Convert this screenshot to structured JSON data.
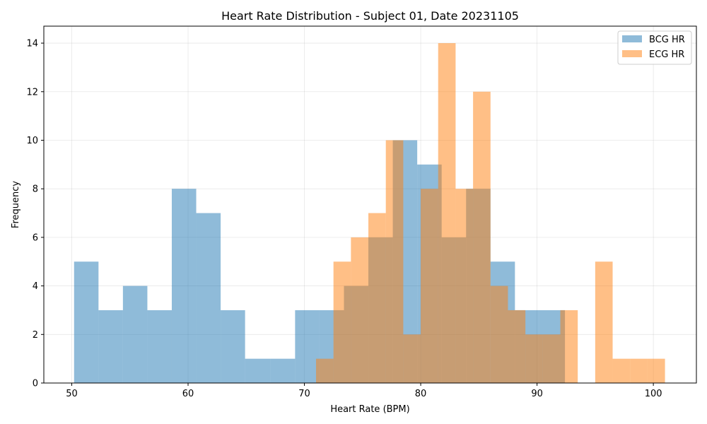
{
  "chart_data": {
    "type": "bar",
    "title": "Heart Rate Distribution - Subject 01, Date 20231105",
    "xlabel": "Heart Rate (BPM)",
    "ylabel": "Frequency",
    "xlim": [
      47.6,
      103.7
    ],
    "ylim": [
      0,
      14.7
    ],
    "xticks": [
      50,
      60,
      70,
      80,
      90,
      100
    ],
    "yticks": [
      0,
      2,
      4,
      6,
      8,
      10,
      12,
      14
    ],
    "grid": true,
    "legend_position": "top-right",
    "series": [
      {
        "name": "BCG HR",
        "color": "#1f77b4",
        "opacity": 0.5,
        "bins": [
          {
            "x0": 50.2,
            "x1": 52.3,
            "count": 5
          },
          {
            "x0": 52.3,
            "x1": 54.4,
            "count": 3
          },
          {
            "x0": 54.4,
            "x1": 56.5,
            "count": 4
          },
          {
            "x0": 56.5,
            "x1": 58.6,
            "count": 3
          },
          {
            "x0": 58.6,
            "x1": 60.7,
            "count": 8
          },
          {
            "x0": 60.7,
            "x1": 62.8,
            "count": 7
          },
          {
            "x0": 62.8,
            "x1": 64.9,
            "count": 3
          },
          {
            "x0": 64.9,
            "x1": 67.1,
            "count": 1
          },
          {
            "x0": 67.1,
            "x1": 69.2,
            "count": 1
          },
          {
            "x0": 69.2,
            "x1": 71.3,
            "count": 3
          },
          {
            "x0": 71.3,
            "x1": 73.4,
            "count": 3
          },
          {
            "x0": 73.4,
            "x1": 75.5,
            "count": 4
          },
          {
            "x0": 75.5,
            "x1": 77.6,
            "count": 6
          },
          {
            "x0": 77.6,
            "x1": 79.7,
            "count": 10
          },
          {
            "x0": 79.7,
            "x1": 81.8,
            "count": 9
          },
          {
            "x0": 81.8,
            "x1": 83.9,
            "count": 6
          },
          {
            "x0": 83.9,
            "x1": 86.0,
            "count": 8
          },
          {
            "x0": 86.0,
            "x1": 88.1,
            "count": 5
          },
          {
            "x0": 88.1,
            "x1": 90.2,
            "count": 3
          },
          {
            "x0": 90.2,
            "x1": 92.4,
            "count": 3
          }
        ]
      },
      {
        "name": "ECG HR",
        "color": "#ff7f0e",
        "opacity": 0.5,
        "bins": [
          {
            "x0": 71.0,
            "x1": 72.5,
            "count": 1
          },
          {
            "x0": 72.5,
            "x1": 74.0,
            "count": 5
          },
          {
            "x0": 74.0,
            "x1": 75.5,
            "count": 6
          },
          {
            "x0": 75.5,
            "x1": 77.0,
            "count": 7
          },
          {
            "x0": 77.0,
            "x1": 78.5,
            "count": 10
          },
          {
            "x0": 78.5,
            "x1": 80.0,
            "count": 2
          },
          {
            "x0": 80.0,
            "x1": 81.5,
            "count": 8
          },
          {
            "x0": 81.5,
            "x1": 83.0,
            "count": 14
          },
          {
            "x0": 83.0,
            "x1": 84.5,
            "count": 8
          },
          {
            "x0": 84.5,
            "x1": 86.0,
            "count": 12
          },
          {
            "x0": 86.0,
            "x1": 87.5,
            "count": 4
          },
          {
            "x0": 87.5,
            "x1": 89.0,
            "count": 3
          },
          {
            "x0": 89.0,
            "x1": 90.5,
            "count": 2
          },
          {
            "x0": 90.5,
            "x1": 92.0,
            "count": 2
          },
          {
            "x0": 92.0,
            "x1": 93.5,
            "count": 3
          },
          {
            "x0": 93.5,
            "x1": 95.0,
            "count": 0
          },
          {
            "x0": 95.0,
            "x1": 96.5,
            "count": 5
          },
          {
            "x0": 96.5,
            "x1": 98.0,
            "count": 1
          },
          {
            "x0": 98.0,
            "x1": 99.5,
            "count": 1
          },
          {
            "x0": 99.5,
            "x1": 101.0,
            "count": 1
          }
        ]
      }
    ]
  }
}
